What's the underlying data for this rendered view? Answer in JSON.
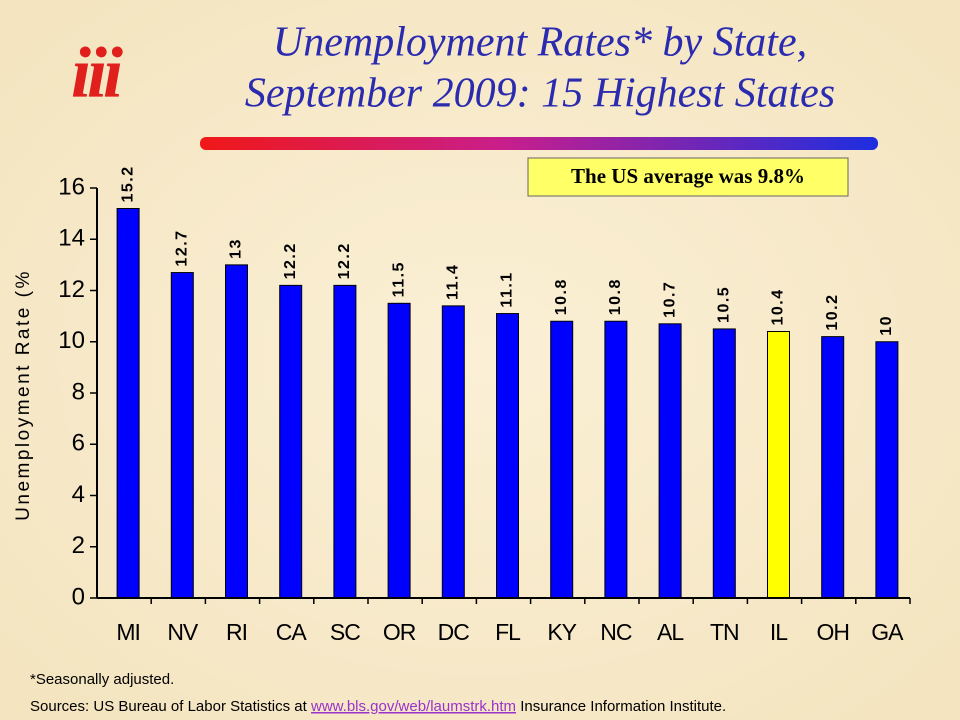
{
  "logo": "iii",
  "chart_data": {
    "type": "bar",
    "title": [
      "Unemployment Rates* by State,",
      "September 2009: 15 Highest States"
    ],
    "y_label": "Unemployment Rate (%",
    "annotation": "The US average was 9.8%",
    "categories": [
      "MI",
      "NV",
      "RI",
      "CA",
      "SC",
      "OR",
      "DC",
      "FL",
      "KY",
      "NC",
      "AL",
      "TN",
      "IL",
      "OH",
      "GA"
    ],
    "values": [
      15.2,
      12.7,
      13.0,
      12.2,
      12.2,
      11.5,
      11.4,
      11.1,
      10.8,
      10.8,
      10.7,
      10.5,
      10.4,
      10.2,
      10.0
    ],
    "colors": [
      "#0000ff",
      "#0000ff",
      "#0000ff",
      "#0000ff",
      "#0000ff",
      "#0000ff",
      "#0000ff",
      "#0000ff",
      "#0000ff",
      "#0000ff",
      "#0000ff",
      "#0000ff",
      "#ffff00",
      "#0000ff",
      "#0000ff"
    ],
    "ylim": [
      0,
      16
    ],
    "yticks": [
      0,
      2,
      4,
      6,
      8,
      10,
      12,
      14,
      16
    ],
    "grid": false,
    "footnote": "*Seasonally adjusted.",
    "sources": {
      "before": "Sources:  US Bureau of Labor Statistics at ",
      "link": "www.bls.gov/web/laumstrk.htm",
      "after": "  Insurance Information Institute."
    }
  }
}
